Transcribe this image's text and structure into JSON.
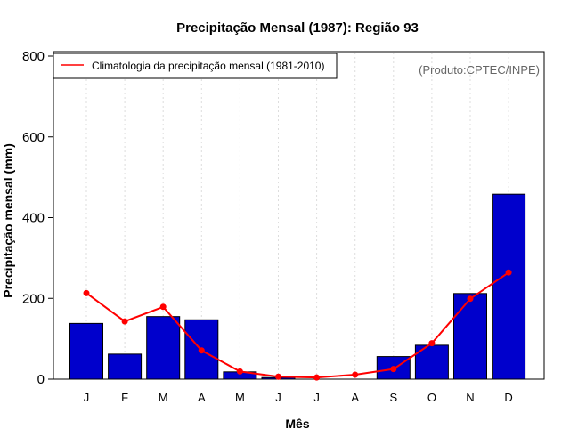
{
  "chart_data": {
    "type": "bar",
    "title": "Precipitação Mensal (1987): Região 93",
    "xlabel": "Mês",
    "ylabel": "Precipitação mensal (mm)",
    "ylim": [
      0,
      800
    ],
    "yticks": [
      0,
      200,
      400,
      600,
      800
    ],
    "categories": [
      "J",
      "F",
      "M",
      "A",
      "M",
      "J",
      "J",
      "A",
      "S",
      "O",
      "N",
      "D"
    ],
    "series": [
      {
        "name": "Precipitação mensal (1987)",
        "kind": "bar",
        "color": "#0000cc",
        "values": [
          138,
          62,
          155,
          147,
          18,
          4,
          0,
          0,
          56,
          84,
          212,
          458
        ]
      },
      {
        "name": "Climatologia da precipitação mensal (1981-2010)",
        "kind": "line",
        "color": "#ff0000",
        "values": [
          213,
          143,
          179,
          71,
          19,
          6,
          4,
          11,
          25,
          89,
          199,
          264
        ]
      }
    ],
    "legend": {
      "label": "Climatologia da precipitação mensal (1981-2010)",
      "position": "top-left"
    },
    "credit": "(Produto:CPTEC/INPE)",
    "grid": "vertical-dotted"
  }
}
